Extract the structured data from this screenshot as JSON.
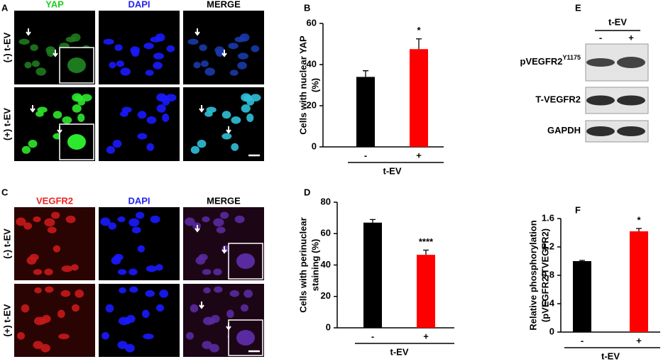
{
  "panels": [
    "A",
    "B",
    "C",
    "D",
    "E",
    "F"
  ],
  "microscopy": [
    {
      "columns": [
        "YAP",
        "DAPI",
        "MERGE"
      ],
      "rows": [
        "(-) t-EV",
        "(+) t-EV"
      ]
    },
    {
      "columns": [
        "VEGFR2",
        "DAPI",
        "MERGE"
      ],
      "rows": [
        "(-) t-EV",
        "(+) t-EV"
      ]
    }
  ],
  "blot": {
    "group": "t-EV",
    "lanes": [
      "-",
      "+"
    ],
    "labels": [
      {
        "text": "pVEGFR2",
        "sup": "Y1175"
      },
      {
        "text": "T-VEGFR2"
      },
      {
        "text": "GAPDH"
      }
    ]
  },
  "chart_data": [
    {
      "type": "bar",
      "ylabel": [
        "Cells with nuclear YAP",
        "(%)"
      ],
      "xlabel": "t-EV",
      "categories": [
        "-",
        "+"
      ],
      "values": [
        34,
        47.5
      ],
      "errors": [
        3,
        5
      ],
      "colors": [
        "#000000",
        "#ff0000"
      ],
      "annotation": "*",
      "ylim": [
        0,
        60
      ],
      "yticks": [
        0,
        20,
        40,
        60
      ]
    },
    {
      "type": "bar",
      "ylabel": [
        "Cells with perinuclear",
        "staining (%)"
      ],
      "xlabel": "t-EV",
      "categories": [
        "-",
        "+"
      ],
      "values": [
        67,
        46.5
      ],
      "errors": [
        2,
        3
      ],
      "colors": [
        "#000000",
        "#ff0000"
      ],
      "annotation": "****",
      "ylim": [
        0,
        80
      ],
      "yticks": [
        0,
        20,
        40,
        60,
        80
      ]
    },
    {
      "type": "bar",
      "ylabel": [
        "Relative phosphorylation",
        "(pVEGFR2/TVEGFR2)"
      ],
      "xlabel": "t-EV",
      "categories": [
        "-",
        "+"
      ],
      "values": [
        1,
        1.42
      ],
      "errors": [
        0.01,
        0.04
      ],
      "colors": [
        "#000000",
        "#ff0000"
      ],
      "annotation": "*",
      "ylim": [
        0,
        1.6
      ],
      "yticks": [
        0,
        0.4,
        0.8,
        1.2,
        1.6
      ]
    }
  ]
}
